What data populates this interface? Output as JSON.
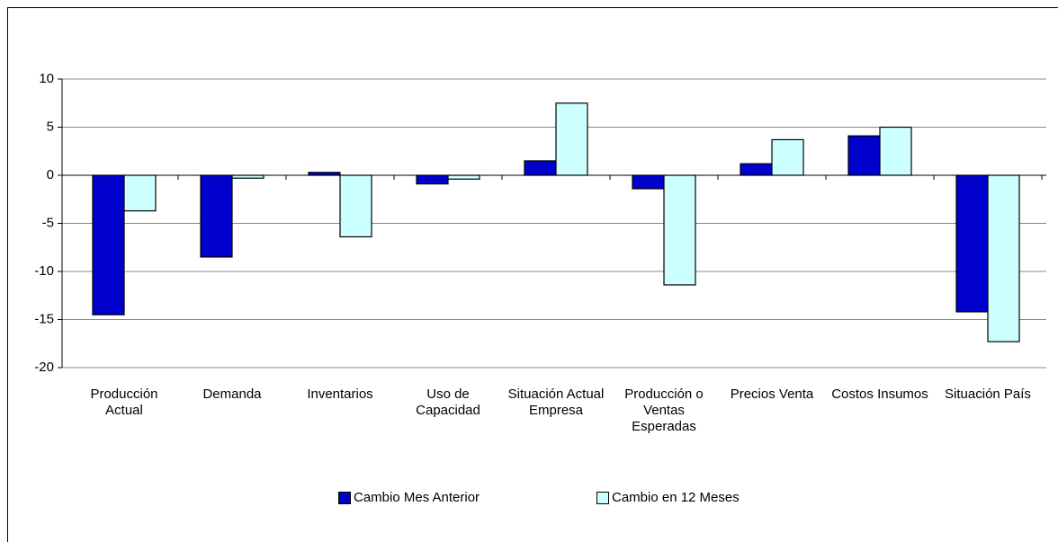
{
  "chart_data": {
    "type": "bar",
    "categories": [
      "Producción Actual",
      "Demanda",
      "Inventarios",
      "Uso de Capacidad",
      "Situación Actual Empresa",
      "Producción o Ventas Esperadas",
      "Precios Venta",
      "Costos Insumos",
      "Situación País"
    ],
    "series": [
      {
        "name": "Cambio Mes Anterior",
        "color": "#0000cc",
        "values": [
          -14.5,
          -8.5,
          0.3,
          -0.9,
          1.5,
          -1.4,
          1.2,
          4.1,
          -14.2
        ]
      },
      {
        "name": "Cambio en 12 Meses",
        "color": "#ccffff",
        "values": [
          -3.7,
          -0.3,
          -6.4,
          -0.4,
          7.5,
          -11.4,
          3.7,
          5.0,
          -17.3
        ]
      }
    ],
    "ylim": [
      -20,
      10
    ],
    "yticks": [
      -20,
      -15,
      -10,
      -5,
      0,
      5,
      10
    ],
    "grid": true,
    "legend": "bottom"
  }
}
